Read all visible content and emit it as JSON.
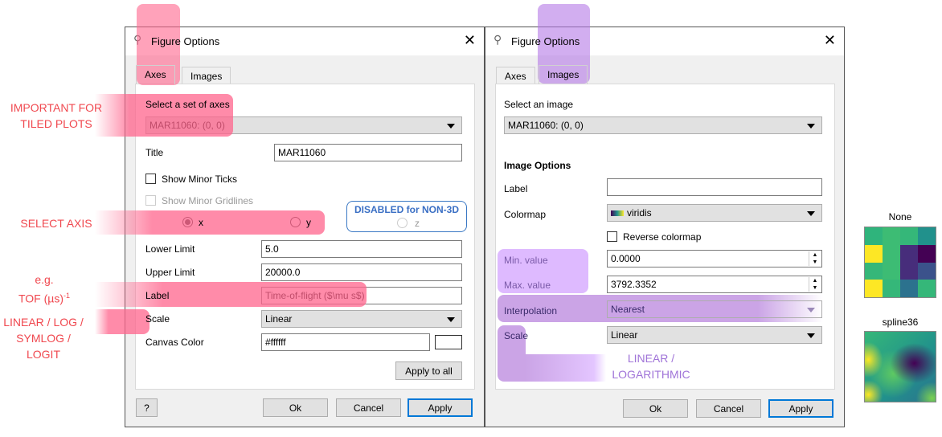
{
  "annotations_left": {
    "tiled": "IMPORTANT FOR TILED PLOTS",
    "axis": "SELECT AXIS",
    "eg": "e.g.",
    "tof": "TOF (µs)",
    "tof_sup": "-1",
    "scales": "LINEAR / LOG / SYMLOG / LOGIT",
    "disabled": "DISABLED for NON-3D"
  },
  "annotations_right": {
    "scales": "LINEAR / LOGARITHMIC"
  },
  "axes_dialog": {
    "title": "Figure Options",
    "tabs": [
      "Axes",
      "Images"
    ],
    "select_label": "Select a set of axes",
    "select_value": "MAR11060: (0, 0)",
    "title_label": "Title",
    "title_value": "MAR11060",
    "minor_ticks": "Show Minor Ticks",
    "minor_gridlines": "Show Minor Gridlines",
    "radio_x": "x",
    "radio_y": "y",
    "radio_z": "z",
    "lower_label": "Lower Limit",
    "lower_value": "5.0",
    "upper_label": "Upper Limit",
    "upper_value": "20000.0",
    "axis_label": "Label",
    "axis_label_value": "Time-of-flight ($\\mu s$)",
    "scale_label": "Scale",
    "scale_value": "Linear",
    "canvas_label": "Canvas Color",
    "canvas_value": "#ffffff",
    "apply_all": "Apply to all",
    "help": "?",
    "ok": "Ok",
    "cancel": "Cancel",
    "apply": "Apply"
  },
  "images_dialog": {
    "title": "Figure Options",
    "tabs": [
      "Axes",
      "Images"
    ],
    "select_label": "Select an image",
    "select_value": "MAR11060: (0, 0)",
    "section": "Image Options",
    "label": "Label",
    "label_value": "",
    "colormap_label": "Colormap",
    "colormap_value": "viridis",
    "reverse": "Reverse colormap",
    "min_label": "Min. value",
    "min_value": "0.0000",
    "max_label": "Max. value",
    "max_value": "3792.3352",
    "interp_label": "Interpolation",
    "interp_value": "Nearest",
    "scale_label": "Scale",
    "scale_value": "Linear",
    "ok": "Ok",
    "cancel": "Cancel",
    "apply": "Apply"
  },
  "examples": {
    "none_label": "None",
    "spline_label": "spline36",
    "none_colors": [
      "#2fb47c",
      "#3dbc74",
      "#35b779",
      "#21918c",
      "#fde725",
      "#3dbc74",
      "#472d7b",
      "#440154",
      "#35b779",
      "#3dbc74",
      "#472d7b",
      "#3b528b",
      "#fde725",
      "#35b779",
      "#2c728e",
      "#35b779"
    ]
  }
}
